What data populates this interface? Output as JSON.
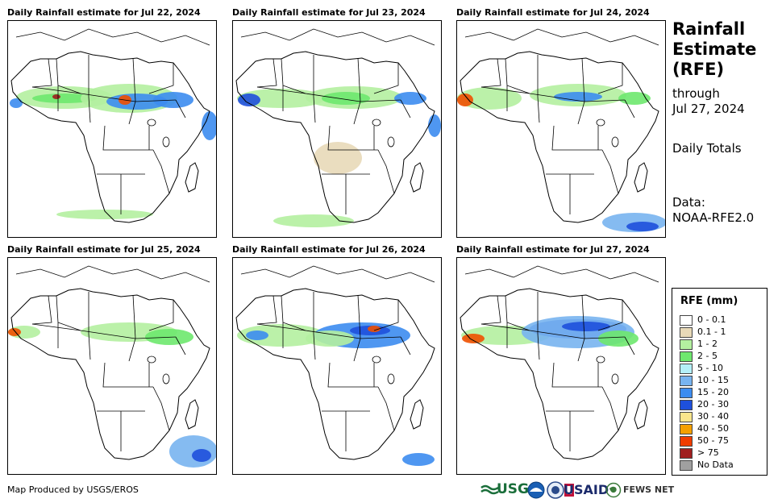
{
  "panels": [
    {
      "title": "Daily Rainfall estimate for Jul 22, 2024"
    },
    {
      "title": "Daily Rainfall estimate for Jul 23, 2024"
    },
    {
      "title": "Daily Rainfall estimate for Jul 24, 2024"
    },
    {
      "title": "Daily Rainfall estimate for Jul 25, 2024"
    },
    {
      "title": "Daily Rainfall estimate for Jul 26, 2024"
    },
    {
      "title": "Daily Rainfall estimate for Jul 27, 2024"
    }
  ],
  "sidebar": {
    "title_line1": "Rainfall",
    "title_line2": "Estimate",
    "title_line3": "(RFE)",
    "through_label": "through",
    "through_date": "Jul 27, 2024",
    "totals_label": "Daily Totals",
    "data_label": "Data:",
    "data_source": "NOAA-RFE2.0"
  },
  "legend": {
    "title": "RFE (mm)",
    "items": [
      {
        "label": "0 - 0.1",
        "color": "#ffffff"
      },
      {
        "label": "0.1 - 1",
        "color": "#e8d9b8"
      },
      {
        "label": "1 - 2",
        "color": "#b4f0a0"
      },
      {
        "label": "2 - 5",
        "color": "#6ee86e"
      },
      {
        "label": "5 - 10",
        "color": "#b4f0f8"
      },
      {
        "label": "10 - 15",
        "color": "#78b4f0"
      },
      {
        "label": "15 - 20",
        "color": "#3c8cf0"
      },
      {
        "label": "20 - 30",
        "color": "#1e50dc"
      },
      {
        "label": "30 - 40",
        "color": "#fae68c"
      },
      {
        "label": "40 - 50",
        "color": "#f5a000"
      },
      {
        "label": "50 - 75",
        "color": "#f03c00"
      },
      {
        "label": "> 75",
        "color": "#a01e1e"
      },
      {
        "label": "No Data",
        "color": "#a0a0a0"
      }
    ]
  },
  "footer": {
    "credit": "Map Produced by USGS/EROS",
    "logo_usgs": "USGS",
    "logo_usaid": "USAID",
    "logo_fews": "FEWS NET"
  }
}
